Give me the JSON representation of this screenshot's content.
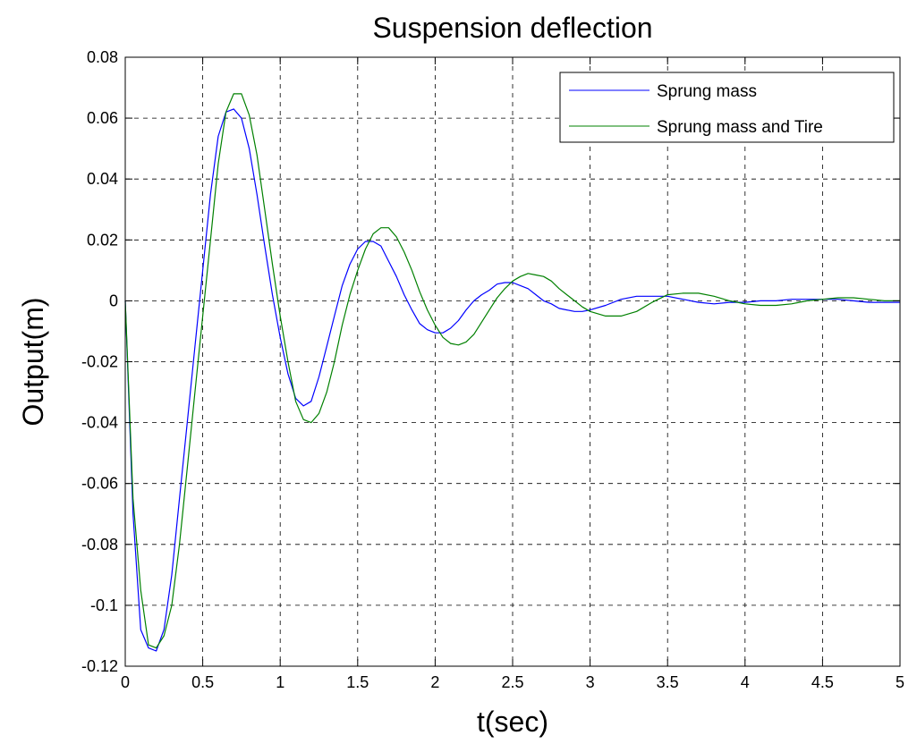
{
  "chart_data": {
    "type": "line",
    "title": "Suspension deflection",
    "xlabel": "t(sec)",
    "ylabel": "Output(m)",
    "xlim": [
      0,
      5
    ],
    "ylim": [
      -0.12,
      0.08
    ],
    "xticks": [
      0,
      0.5,
      1,
      1.5,
      2,
      2.5,
      3,
      3.5,
      4,
      4.5,
      5
    ],
    "xtick_labels": [
      "0",
      "0.5",
      "1",
      "1.5",
      "2",
      "2.5",
      "3",
      "3.5",
      "4",
      "4.5",
      "5"
    ],
    "yticks": [
      -0.12,
      -0.1,
      -0.08,
      -0.06,
      -0.04,
      -0.02,
      0,
      0.02,
      0.04,
      0.06,
      0.08
    ],
    "ytick_labels": [
      "-0.12",
      "-0.1",
      "-0.08",
      "-0.06",
      "-0.04",
      "-0.02",
      "0",
      "0.02",
      "0.04",
      "0.06",
      "0.08"
    ],
    "grid": true,
    "legend_position": "top-right",
    "series": [
      {
        "name": "Sprung mass",
        "color": "#0000ff",
        "x": [
          0,
          0.05,
          0.1,
          0.15,
          0.2,
          0.25,
          0.3,
          0.35,
          0.4,
          0.45,
          0.5,
          0.55,
          0.6,
          0.65,
          0.7,
          0.75,
          0.8,
          0.85,
          0.9,
          0.95,
          1.0,
          1.05,
          1.1,
          1.15,
          1.2,
          1.25,
          1.3,
          1.35,
          1.4,
          1.45,
          1.5,
          1.55,
          1.6,
          1.65,
          1.7,
          1.75,
          1.8,
          1.85,
          1.9,
          1.95,
          2.0,
          2.05,
          2.1,
          2.15,
          2.2,
          2.25,
          2.3,
          2.35,
          2.4,
          2.45,
          2.5,
          2.55,
          2.6,
          2.65,
          2.7,
          2.75,
          2.8,
          2.85,
          2.9,
          2.95,
          3.0,
          3.1,
          3.2,
          3.3,
          3.4,
          3.5,
          3.6,
          3.7,
          3.8,
          3.9,
          4.0,
          4.1,
          4.2,
          4.3,
          4.4,
          4.5,
          4.6,
          4.7,
          4.8,
          4.9,
          5.0
        ],
        "y": [
          0,
          -0.07,
          -0.108,
          -0.114,
          -0.115,
          -0.108,
          -0.09,
          -0.065,
          -0.04,
          -0.015,
          0.01,
          0.035,
          0.054,
          0.062,
          0.063,
          0.06,
          0.05,
          0.035,
          0.018,
          0.002,
          -0.012,
          -0.024,
          -0.032,
          -0.0345,
          -0.033,
          -0.025,
          -0.015,
          -0.005,
          0.005,
          0.012,
          0.017,
          0.0195,
          0.0195,
          0.018,
          0.013,
          0.008,
          0.002,
          -0.003,
          -0.0075,
          -0.0095,
          -0.0105,
          -0.0105,
          -0.009,
          -0.0065,
          -0.003,
          0,
          0.002,
          0.0035,
          0.0055,
          0.006,
          0.006,
          0.005,
          0.004,
          0.002,
          0,
          -0.001,
          -0.0025,
          -0.003,
          -0.0035,
          -0.0035,
          -0.003,
          -0.0015,
          0.0005,
          0.0015,
          0.0015,
          0.0015,
          0.0005,
          -0.0005,
          -0.001,
          -0.0005,
          -0.0005,
          0,
          0,
          0.0005,
          0.0005,
          0.0005,
          0.0005,
          0,
          -0.0005,
          -0.0005,
          -0.0005
        ]
      },
      {
        "name": "Sprung mass and Tire",
        "color": "#008000",
        "x": [
          0,
          0.05,
          0.1,
          0.15,
          0.2,
          0.25,
          0.3,
          0.35,
          0.4,
          0.45,
          0.5,
          0.55,
          0.6,
          0.65,
          0.7,
          0.75,
          0.8,
          0.85,
          0.9,
          0.95,
          1.0,
          1.05,
          1.1,
          1.15,
          1.2,
          1.25,
          1.3,
          1.35,
          1.4,
          1.45,
          1.5,
          1.55,
          1.6,
          1.65,
          1.7,
          1.75,
          1.8,
          1.85,
          1.9,
          1.95,
          2.0,
          2.05,
          2.1,
          2.15,
          2.2,
          2.25,
          2.3,
          2.35,
          2.4,
          2.45,
          2.5,
          2.55,
          2.6,
          2.65,
          2.7,
          2.75,
          2.8,
          2.85,
          2.9,
          2.95,
          3.0,
          3.1,
          3.2,
          3.3,
          3.4,
          3.5,
          3.6,
          3.7,
          3.8,
          3.9,
          4.0,
          4.1,
          4.2,
          4.3,
          4.4,
          4.5,
          4.6,
          4.7,
          4.8,
          4.9,
          5.0
        ],
        "y": [
          0,
          -0.065,
          -0.095,
          -0.113,
          -0.114,
          -0.11,
          -0.1,
          -0.08,
          -0.055,
          -0.03,
          -0.005,
          0.02,
          0.045,
          0.062,
          0.068,
          0.068,
          0.061,
          0.048,
          0.03,
          0.012,
          -0.005,
          -0.02,
          -0.033,
          -0.039,
          -0.04,
          -0.037,
          -0.03,
          -0.02,
          -0.008,
          0.002,
          0.01,
          0.017,
          0.022,
          0.024,
          0.024,
          0.021,
          0.016,
          0.01,
          0.003,
          -0.003,
          -0.008,
          -0.012,
          -0.014,
          -0.0145,
          -0.0135,
          -0.011,
          -0.007,
          -0.003,
          0.001,
          0.004,
          0.0065,
          0.008,
          0.009,
          0.0085,
          0.008,
          0.0065,
          0.004,
          0.002,
          0,
          -0.002,
          -0.0035,
          -0.005,
          -0.005,
          -0.0035,
          -0.0005,
          0.002,
          0.0025,
          0.0025,
          0.0015,
          0,
          -0.001,
          -0.0015,
          -0.0015,
          -0.001,
          0,
          0.0005,
          0.001,
          0.001,
          0.0005,
          0,
          0
        ]
      }
    ]
  }
}
